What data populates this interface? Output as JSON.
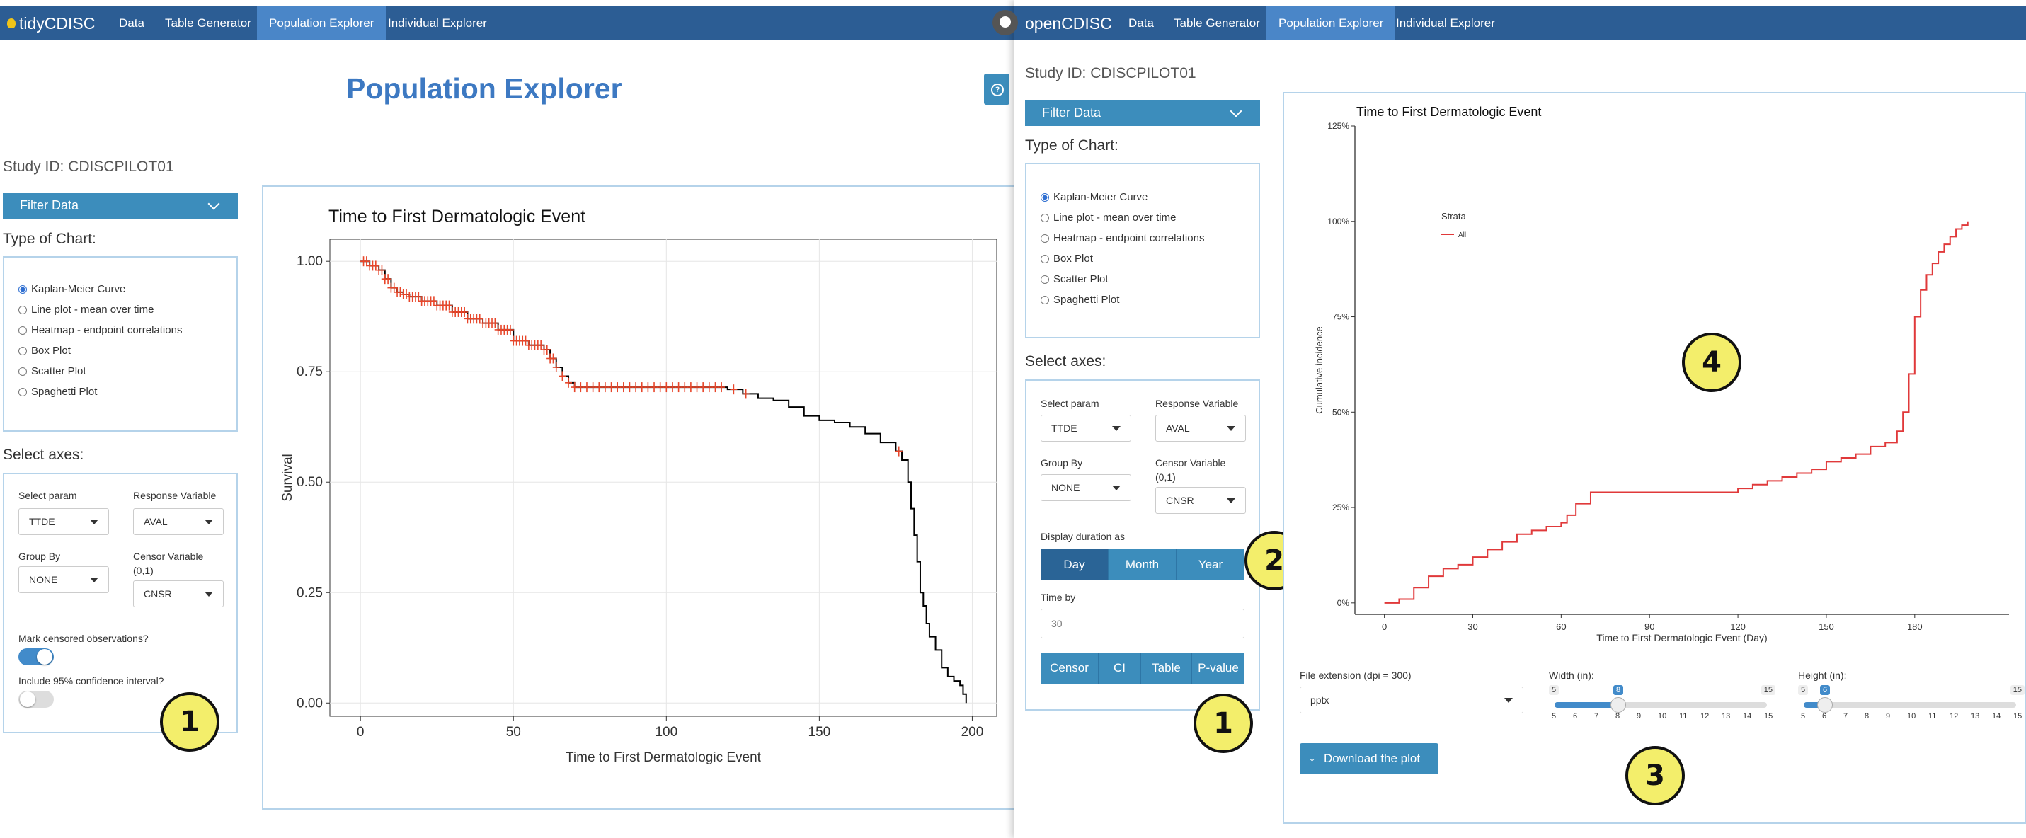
{
  "left_app": {
    "brand": "tidyCDISC",
    "nav": [
      "Data",
      "Table Generator",
      "Population Explorer",
      "Individual Explorer"
    ],
    "active_nav": "Population Explorer",
    "page_title": "Population Explorer",
    "help_icon": "question-circle-icon",
    "study_id": "Study ID: CDISCPILOT01",
    "filter_label": "Filter Data",
    "chart_type_heading": "Type of Chart:",
    "chart_types": [
      "Kaplan-Meier Curve",
      "Line plot - mean over time",
      "Heatmap - endpoint correlations",
      "Box Plot",
      "Scatter Plot",
      "Spaghetti Plot"
    ],
    "selected_chart_type": "Kaplan-Meier Curve",
    "axes_heading": "Select axes:",
    "select_param_label": "Select param",
    "select_param_value": "TTDE",
    "response_label": "Response Variable",
    "response_value": "AVAL",
    "group_by_label": "Group By",
    "group_by_value": "NONE",
    "censor_label_1": "Censor Variable",
    "censor_label_2": "(0,1)",
    "censor_value": "CNSR",
    "mark_censored_label": "Mark censored observations?",
    "mark_censored_on": true,
    "ci_label": "Include 95% confidence interval?",
    "ci_on": false,
    "badge": "1"
  },
  "right_app": {
    "brand": "openCDISC",
    "github_icon": "github-icon",
    "nav": [
      "Data",
      "Table Generator",
      "Population Explorer",
      "Individual Explorer"
    ],
    "active_nav": "Population Explorer",
    "study_id": "Study ID: CDISCPILOT01",
    "filter_label": "Filter Data",
    "chart_type_heading": "Type of Chart:",
    "chart_types": [
      "Kaplan-Meier Curve",
      "Line plot - mean over time",
      "Heatmap - endpoint correlations",
      "Box Plot",
      "Scatter Plot",
      "Spaghetti Plot"
    ],
    "selected_chart_type": "Kaplan-Meier Curve",
    "axes_heading": "Select axes:",
    "select_param_label": "Select param",
    "select_param_value": "TTDE",
    "response_label": "Response Variable",
    "response_value": "AVAL",
    "group_by_label": "Group By",
    "group_by_value": "NONE",
    "censor_label_1": "Censor Variable",
    "censor_label_2": "(0,1)",
    "censor_value": "CNSR",
    "duration_label": "Display duration as",
    "duration_options": [
      "Day",
      "Month",
      "Year"
    ],
    "duration_selected": "Day",
    "time_by_label": "Time by",
    "time_by_value": "30",
    "toggle_buttons": [
      "Censor",
      "CI",
      "Table",
      "P-value"
    ],
    "file_ext_label": "File extension (dpi = 300)",
    "file_ext_value": "pptx",
    "width_label": "Width (in):",
    "width": {
      "min": 5,
      "max": 15,
      "value": 8,
      "ticks": [
        "5",
        "6",
        "7",
        "8",
        "9",
        "10",
        "11",
        "12",
        "13",
        "14",
        "15"
      ]
    },
    "height_label": "Height (in):",
    "height": {
      "min": 5,
      "max": 15,
      "value": 6,
      "ticks": [
        "5",
        "6",
        "7",
        "8",
        "9",
        "10",
        "11",
        "12",
        "13",
        "14",
        "15"
      ]
    },
    "download_label": "Download the plot",
    "download_icon": "download-icon",
    "badges": [
      "2",
      "1",
      "3",
      "4"
    ]
  },
  "chart_data": [
    {
      "type": "line",
      "title": "Time to First Dermatologic Event",
      "xlabel": "Time to First Dermatologic Event",
      "ylabel": "Survival",
      "xlim": [
        -10,
        208
      ],
      "ylim": [
        -0.03,
        1.05
      ],
      "x_ticks": [
        0,
        50,
        100,
        150,
        200
      ],
      "y_ticks": [
        "0.00",
        "0.25",
        "0.50",
        "0.75",
        "1.00"
      ],
      "grid": true,
      "step": true,
      "line_color": "#000000",
      "censor_color": "#e8462a",
      "series": [
        {
          "x": [
            0,
            3,
            6,
            8,
            10,
            12,
            14,
            16,
            20,
            25,
            30,
            35,
            40,
            45,
            50,
            55,
            60,
            62,
            64,
            66,
            68,
            70,
            120,
            125,
            130,
            135,
            140,
            145,
            150,
            155,
            160,
            165,
            170,
            175,
            177,
            179,
            180,
            181,
            182,
            183,
            184,
            185,
            186,
            188,
            190,
            192,
            194,
            196,
            197,
            198
          ],
          "y": [
            1.0,
            0.99,
            0.98,
            0.96,
            0.94,
            0.93,
            0.925,
            0.92,
            0.91,
            0.9,
            0.885,
            0.87,
            0.86,
            0.845,
            0.82,
            0.81,
            0.8,
            0.78,
            0.76,
            0.74,
            0.725,
            0.715,
            0.71,
            0.7,
            0.69,
            0.685,
            0.67,
            0.65,
            0.64,
            0.635,
            0.625,
            0.61,
            0.59,
            0.57,
            0.55,
            0.5,
            0.44,
            0.38,
            0.32,
            0.25,
            0.22,
            0.18,
            0.15,
            0.12,
            0.08,
            0.06,
            0.05,
            0.04,
            0.02,
            0.0
          ]
        }
      ],
      "censored_x": [
        1,
        2,
        3,
        4,
        5,
        6,
        7,
        8,
        9,
        10,
        11,
        12,
        13,
        14,
        15,
        16,
        17,
        18,
        19,
        20,
        21,
        22,
        23,
        24,
        25,
        26,
        27,
        28,
        29,
        30,
        31,
        32,
        33,
        34,
        35,
        36,
        37,
        38,
        39,
        40,
        41,
        42,
        43,
        44,
        45,
        46,
        47,
        48,
        49,
        50,
        51,
        52,
        53,
        54,
        55,
        56,
        57,
        58,
        59,
        60,
        61,
        62,
        63,
        64,
        66,
        68,
        70,
        72,
        74,
        76,
        78,
        80,
        82,
        84,
        86,
        88,
        90,
        92,
        94,
        96,
        98,
        100,
        102,
        104,
        106,
        108,
        110,
        112,
        114,
        116,
        118,
        122,
        126,
        176
      ]
    },
    {
      "type": "line",
      "title": "Time to First Dermatologic Event",
      "xlabel": "Time to First Dermatologic Event (Day)",
      "ylabel": "Cumulative incidence",
      "xlim": [
        -10,
        212
      ],
      "ylim": [
        -0.03,
        1.25
      ],
      "x_ticks": [
        "0",
        "30",
        "60",
        "90",
        "120",
        "150",
        "180"
      ],
      "y_ticks": [
        "0%",
        "25%",
        "50%",
        "75%",
        "100%",
        "125%"
      ],
      "grid": false,
      "legend": {
        "title": "Strata",
        "entries": [
          "All"
        ],
        "position": "top-left"
      },
      "series": [
        {
          "name": "All",
          "color": "#e0393a",
          "x": [
            0,
            5,
            10,
            15,
            20,
            25,
            30,
            35,
            40,
            45,
            50,
            55,
            60,
            62,
            65,
            70,
            75,
            80,
            90,
            100,
            110,
            120,
            125,
            130,
            135,
            140,
            145,
            150,
            155,
            160,
            165,
            170,
            174,
            176,
            178,
            180,
            182,
            184,
            186,
            188,
            190,
            192,
            194,
            196,
            198
          ],
          "y": [
            0.0,
            0.01,
            0.04,
            0.07,
            0.09,
            0.1,
            0.12,
            0.14,
            0.16,
            0.18,
            0.19,
            0.2,
            0.21,
            0.23,
            0.26,
            0.29,
            0.29,
            0.29,
            0.29,
            0.29,
            0.29,
            0.3,
            0.31,
            0.32,
            0.33,
            0.34,
            0.35,
            0.37,
            0.38,
            0.39,
            0.41,
            0.42,
            0.45,
            0.5,
            0.6,
            0.75,
            0.82,
            0.86,
            0.89,
            0.92,
            0.94,
            0.96,
            0.98,
            0.99,
            1.0
          ]
        }
      ]
    }
  ]
}
